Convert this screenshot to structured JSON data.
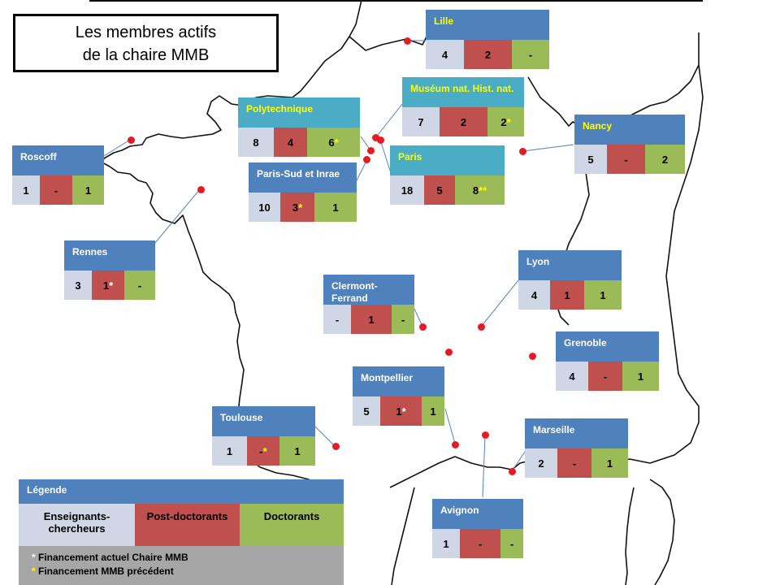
{
  "title": {
    "line1": "Les membres actifs",
    "line2": "de la chaire MMB"
  },
  "sites": [
    {
      "name": "Lille",
      "header_color": "blue",
      "yellow": true,
      "v1": "4",
      "v2": "2",
      "v3": "-",
      "s1": "",
      "s2": "",
      "s3": ""
    },
    {
      "name": "Muséum nat. Hist. nat.",
      "header_color": "teal",
      "yellow": true,
      "v1": "7",
      "v2": "2",
      "v3": "2",
      "s1": "",
      "s2": "",
      "s3": "*"
    },
    {
      "name": "Polytechnique",
      "header_color": "teal",
      "yellow": true,
      "v1": "8",
      "v2": "4",
      "v3": "6",
      "s1": "",
      "s2": "",
      "s3": "*"
    },
    {
      "name": "Nancy",
      "header_color": "blue",
      "yellow": true,
      "v1": "5",
      "v2": "-",
      "v3": "2",
      "s1": "",
      "s2": "",
      "s3": ""
    },
    {
      "name": "Paris",
      "header_color": "teal",
      "yellow": true,
      "v1": "18",
      "v2": "5",
      "v3": "8",
      "s1": "",
      "s2": "",
      "s3": "**"
    },
    {
      "name": "Paris-Sud et Inrae",
      "header_color": "blue",
      "yellow": false,
      "v1": "10",
      "v2": "3",
      "v3": "1",
      "s1": "",
      "s2": "*",
      "s3": ""
    },
    {
      "name": "Roscoff",
      "header_color": "blue",
      "yellow": false,
      "v1": "1",
      "v2": "-",
      "v3": "1",
      "s1": "",
      "s2": "",
      "s3": ""
    },
    {
      "name": "Rennes",
      "header_color": "blue",
      "yellow": false,
      "v1": "3",
      "v2": "1",
      "v3": "-",
      "s1": "",
      "s2": "*",
      "s3": ""
    },
    {
      "name": "Lyon",
      "header_color": "blue",
      "yellow": false,
      "v1": "4",
      "v2": "1",
      "v3": "1",
      "s1": "",
      "s2": "",
      "s3": ""
    },
    {
      "name": "Clermont-Ferrand",
      "header_color": "blue",
      "yellow": false,
      "v1": "-",
      "v2": "1",
      "v3": "-",
      "s1": "",
      "s2": "",
      "s3": ""
    },
    {
      "name": "Grenoble",
      "header_color": "blue",
      "yellow": false,
      "v1": "4",
      "v2": "-",
      "v3": "1",
      "s1": "",
      "s2": "",
      "s3": ""
    },
    {
      "name": "Montpellier",
      "header_color": "blue",
      "yellow": false,
      "v1": "5",
      "v2": "1",
      "v3": "1",
      "s1": "",
      "s2": "*",
      "s3": ""
    },
    {
      "name": "Toulouse",
      "header_color": "blue",
      "yellow": false,
      "v1": "1",
      "v2": "-",
      "v3": "1",
      "s1": "",
      "s2": "*",
      "s3": ""
    },
    {
      "name": "Marseille",
      "header_color": "blue",
      "yellow": false,
      "v1": "2",
      "v2": "-",
      "v3": "1",
      "s1": "",
      "s2": "",
      "s3": ""
    },
    {
      "name": "Avignon",
      "header_color": "blue",
      "yellow": false,
      "v1": "1",
      "v2": "-",
      "v3": "-",
      "s1": "",
      "s2": "",
      "s3": ""
    }
  ],
  "legend": {
    "title": "Légende",
    "col1": "Enseignants-chercheurs",
    "col2": "Post-doctorants",
    "col3": "Doctorants",
    "note1_star": "*",
    "note1": "Financement actuel Chaire MMB",
    "note2_star": "*",
    "note2": "Financement MMB précédent"
  },
  "colors": {
    "blue_header": "#4f81bd",
    "teal_header": "#4bacc6",
    "enseignants": "#cfd7e6",
    "postdoc": "#c0504d",
    "doctorants": "#9bbb59",
    "marker": "#e31b23",
    "yellow_text": "#ffff00"
  }
}
